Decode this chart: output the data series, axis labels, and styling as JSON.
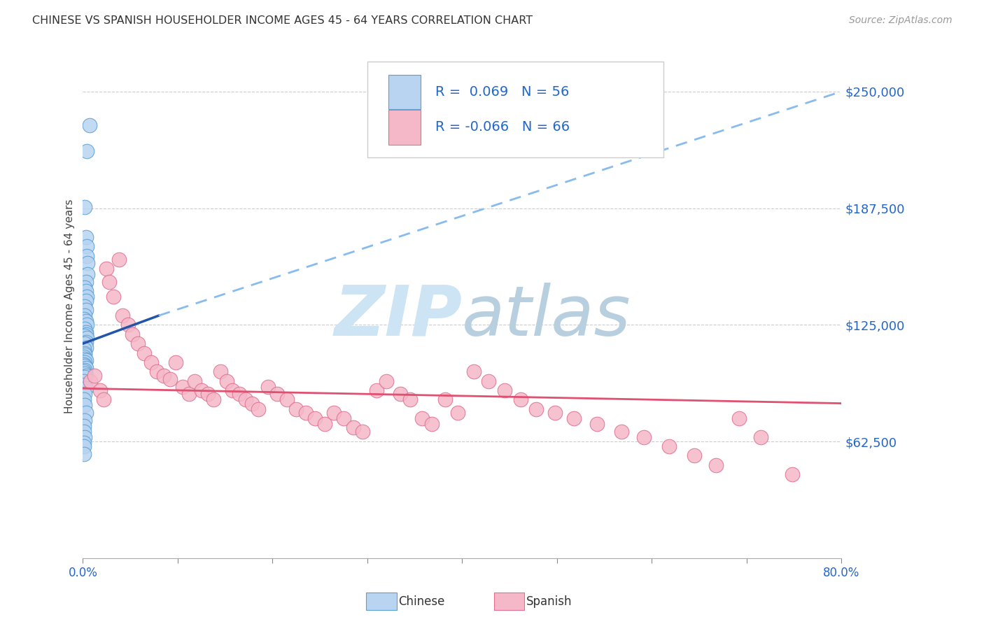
{
  "title": "CHINESE VS SPANISH HOUSEHOLDER INCOME AGES 45 - 64 YEARS CORRELATION CHART",
  "source": "Source: ZipAtlas.com",
  "ylabel": "Householder Income Ages 45 - 64 years",
  "ytick_labels": [
    "$62,500",
    "$125,000",
    "$187,500",
    "$250,000"
  ],
  "ytick_values": [
    62500,
    125000,
    187500,
    250000
  ],
  "xlim": [
    0.0,
    0.8
  ],
  "ylim": [
    0,
    270000
  ],
  "watermark_zip": "ZIP",
  "watermark_atlas": "atlas",
  "legend_chinese_R": "0.069",
  "legend_chinese_N": "56",
  "legend_spanish_R": "-0.066",
  "legend_spanish_N": "66",
  "color_chinese_fill": "#b8d4f0",
  "color_chinese_edge": "#5a9fd4",
  "color_spanish_fill": "#f5b8c8",
  "color_spanish_edge": "#e07090",
  "color_chinese_line_solid": "#2255aa",
  "color_chinese_line_dash": "#88bbee",
  "color_spanish_line": "#e05070",
  "chinese_x": [
    0.004,
    0.007,
    0.002,
    0.003,
    0.004,
    0.004,
    0.005,
    0.005,
    0.003,
    0.002,
    0.003,
    0.004,
    0.003,
    0.002,
    0.003,
    0.002,
    0.001,
    0.003,
    0.004,
    0.002,
    0.003,
    0.003,
    0.002,
    0.004,
    0.003,
    0.002,
    0.003,
    0.001,
    0.002,
    0.002,
    0.001,
    0.002,
    0.003,
    0.002,
    0.001,
    0.002,
    0.003,
    0.002,
    0.001,
    0.002,
    0.003,
    0.002,
    0.001,
    0.002,
    0.003,
    0.002,
    0.001,
    0.002,
    0.003,
    0.002,
    0.001,
    0.001,
    0.002,
    0.001,
    0.001,
    0.001
  ],
  "chinese_y": [
    218000,
    232000,
    188000,
    172000,
    167000,
    162000,
    158000,
    152000,
    148000,
    145000,
    143000,
    140000,
    138000,
    135000,
    133000,
    130000,
    128000,
    127000,
    125000,
    123000,
    121000,
    120000,
    119000,
    118000,
    116000,
    115000,
    113000,
    112000,
    110000,
    109000,
    108000,
    107000,
    106000,
    105000,
    104000,
    103000,
    102000,
    101000,
    100000,
    99000,
    98000,
    97000,
    95000,
    93000,
    91000,
    88000,
    85000,
    82000,
    78000,
    74000,
    71000,
    68000,
    65000,
    62000,
    60000,
    56000
  ],
  "spanish_x": [
    0.008,
    0.012,
    0.018,
    0.022,
    0.025,
    0.028,
    0.032,
    0.038,
    0.042,
    0.048,
    0.052,
    0.058,
    0.065,
    0.072,
    0.078,
    0.085,
    0.092,
    0.098,
    0.105,
    0.112,
    0.118,
    0.125,
    0.132,
    0.138,
    0.145,
    0.152,
    0.158,
    0.165,
    0.172,
    0.178,
    0.185,
    0.195,
    0.205,
    0.215,
    0.225,
    0.235,
    0.245,
    0.255,
    0.265,
    0.275,
    0.285,
    0.295,
    0.31,
    0.32,
    0.335,
    0.345,
    0.358,
    0.368,
    0.382,
    0.395,
    0.412,
    0.428,
    0.445,
    0.462,
    0.478,
    0.498,
    0.518,
    0.542,
    0.568,
    0.592,
    0.618,
    0.645,
    0.668,
    0.692,
    0.715,
    0.748
  ],
  "spanish_y": [
    95000,
    98000,
    90000,
    85000,
    155000,
    148000,
    140000,
    160000,
    130000,
    125000,
    120000,
    115000,
    110000,
    105000,
    100000,
    98000,
    96000,
    105000,
    92000,
    88000,
    95000,
    90000,
    88000,
    85000,
    100000,
    95000,
    90000,
    88000,
    85000,
    83000,
    80000,
    92000,
    88000,
    85000,
    80000,
    78000,
    75000,
    72000,
    78000,
    75000,
    70000,
    68000,
    90000,
    95000,
    88000,
    85000,
    75000,
    72000,
    85000,
    78000,
    100000,
    95000,
    90000,
    85000,
    80000,
    78000,
    75000,
    72000,
    68000,
    65000,
    60000,
    55000,
    50000,
    75000,
    65000,
    45000
  ],
  "trendline_chinese_x0": 0.0,
  "trendline_chinese_y0": 115000,
  "trendline_chinese_x1": 0.08,
  "trendline_chinese_y1": 130000,
  "trendline_chinese_dash_x0": 0.08,
  "trendline_chinese_dash_y0": 130000,
  "trendline_chinese_dash_x1": 0.8,
  "trendline_chinese_dash_y1": 250000,
  "trendline_spanish_x0": 0.0,
  "trendline_spanish_y0": 91000,
  "trendline_spanish_x1": 0.8,
  "trendline_spanish_y1": 83000
}
